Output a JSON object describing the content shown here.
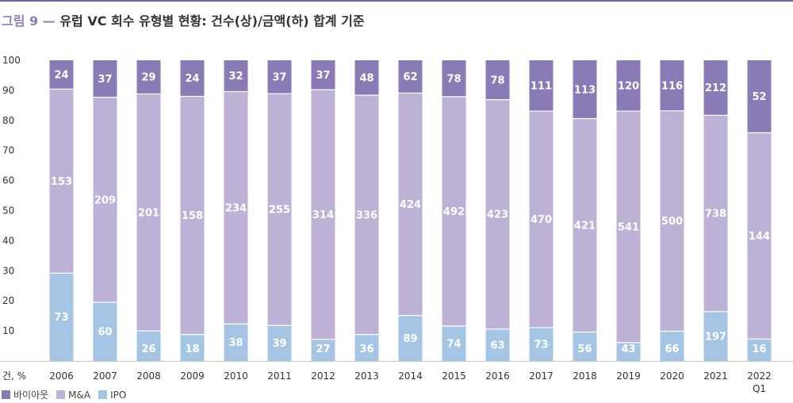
{
  "header": {
    "figure_label": "그림 9",
    "dash": "—",
    "title": "유럽 VC 회수 유형별 현황: 건수(상)/금액(하) 합계 기준"
  },
  "colors": {
    "buyout": "#8a7bb6",
    "ma": "#bdb2d5",
    "ipo": "#a4c6e4",
    "axis_text": "#333333",
    "gridline": "#c8c8c8",
    "accent": "#6f62a3"
  },
  "chart_data": {
    "type": "bar",
    "stacked": true,
    "title": "유럽 VC 회수 유형별 현황: 건수(상)/금액(하) 합계 기준",
    "ylabel": "건, %",
    "ylim": [
      0,
      100
    ],
    "yticks": [
      "10",
      "20",
      "30",
      "40",
      "50",
      "60",
      "70",
      "80",
      "90",
      "100"
    ],
    "categories": [
      "2006",
      "2007",
      "2008",
      "2009",
      "2010",
      "2011",
      "2012",
      "2013",
      "2014",
      "2015",
      "2016",
      "2017",
      "2018",
      "2019",
      "2020",
      "2021",
      "2022"
    ],
    "category_sublabels": [
      "",
      "",
      "",
      "",
      "",
      "",
      "",
      "",
      "",
      "",
      "",
      "",
      "",
      "",
      "",
      "",
      "Q1"
    ],
    "series": [
      {
        "name": "IPO",
        "color_key": "ipo",
        "labels": [
          73,
          60,
          26,
          18,
          38,
          39,
          27,
          36,
          89,
          74,
          63,
          73,
          56,
          43,
          66,
          197,
          16
        ],
        "percent": [
          29.2,
          19.5,
          10.0,
          8.8,
          12.3,
          11.8,
          7.2,
          8.8,
          15.1,
          11.6,
          10.6,
          11.1,
          9.6,
          6.1,
          9.9,
          16.4,
          7.3
        ]
      },
      {
        "name": "M&A",
        "color_key": "ma",
        "labels": [
          153,
          209,
          201,
          158,
          234,
          255,
          314,
          336,
          424,
          492,
          423,
          470,
          421,
          541,
          500,
          738,
          144
        ],
        "percent": [
          61.2,
          68.2,
          78.8,
          79.2,
          77.3,
          77.1,
          83.0,
          79.6,
          74.0,
          76.3,
          76.3,
          72.0,
          71.0,
          77.0,
          73.3,
          65.3,
          68.6
        ]
      },
      {
        "name": "바이아웃",
        "color_key": "buyout",
        "labels": [
          24,
          37,
          29,
          24,
          32,
          37,
          37,
          48,
          62,
          78,
          78,
          111,
          113,
          120,
          116,
          212,
          52
        ],
        "percent": [
          9.6,
          12.3,
          11.2,
          12.0,
          10.4,
          11.1,
          9.8,
          11.6,
          10.9,
          12.1,
          13.1,
          16.9,
          19.4,
          16.9,
          16.8,
          18.3,
          24.1
        ]
      }
    ],
    "legend_position": "bottom-left",
    "grid": false
  },
  "legend": {
    "items": [
      {
        "label": "바이아웃",
        "color_key": "buyout"
      },
      {
        "label": "M&A",
        "color_key": "ma"
      },
      {
        "label": "IPO",
        "color_key": "ipo"
      }
    ]
  }
}
